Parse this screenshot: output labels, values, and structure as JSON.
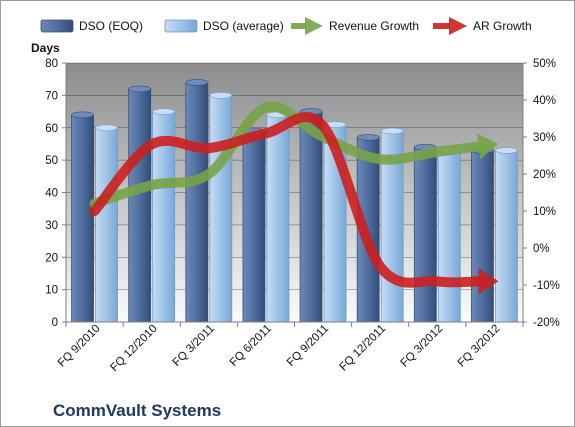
{
  "chart_data": {
    "type": "bar",
    "title": "CommVault Systems",
    "ylabel": "Days",
    "categories": [
      "FQ 9/2010",
      "FQ 12/2010",
      "FQ 3/2011",
      "FQ 6/2011",
      "FQ 9/2011",
      "FQ 12/2011",
      "FQ 3/2012",
      "FQ 3/2012"
    ],
    "ylim": [
      0,
      80
    ],
    "yticks": [
      "0",
      "10",
      "20",
      "30",
      "40",
      "50",
      "60",
      "70",
      "80"
    ],
    "y2lim": [
      -20,
      50
    ],
    "y2ticks": [
      "-20%",
      "-10%",
      "0%",
      "10%",
      "20%",
      "30%",
      "40%",
      "50%"
    ],
    "series": [
      {
        "name": "DSO (EOQ)",
        "kind": "bar",
        "axis": "left",
        "color": "#4f6d9e",
        "values": [
          64,
          72,
          74,
          59,
          65,
          57,
          54,
          53
        ]
      },
      {
        "name": "DSO (average)",
        "kind": "bar",
        "axis": "left",
        "color": "#9ec3e8",
        "values": [
          60,
          65,
          70,
          64,
          61,
          59,
          53,
          53
        ]
      },
      {
        "name": "Revenue Growth",
        "kind": "line-arrow",
        "axis": "right",
        "color": "#77a347",
        "values": [
          12,
          17,
          20,
          38,
          30,
          24,
          26,
          28
        ]
      },
      {
        "name": "AR Growth",
        "kind": "line-arrow",
        "axis": "right",
        "color": "#cc1f1f",
        "values": [
          10,
          28,
          27,
          31,
          33,
          -5,
          -9,
          -9
        ]
      }
    ],
    "grid": true,
    "legend": "top"
  }
}
